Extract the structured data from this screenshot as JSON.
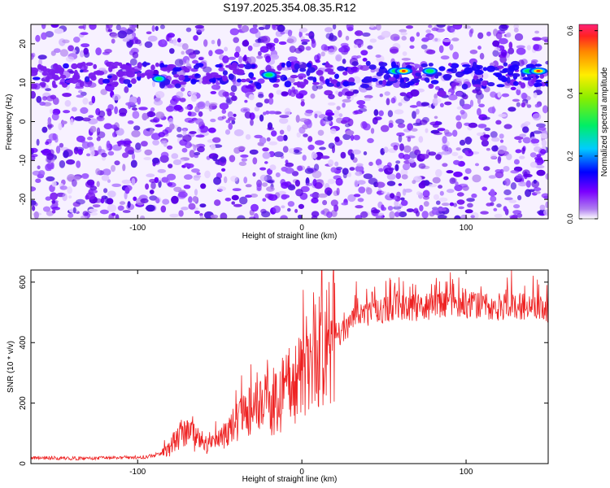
{
  "figure": {
    "title": "S197.2025.354.08.35.R12"
  },
  "chart_data": [
    {
      "type": "heatmap",
      "title": "S197.2025.354.08.35.R12",
      "xlabel": "Height of straight line (km)",
      "ylabel": "Frequency (Hz)",
      "xlim": [
        -165,
        150
      ],
      "ylim": [
        -25,
        25
      ],
      "xticks": [
        -100,
        0,
        100
      ],
      "xtick_labels": [
        "-100",
        "0",
        "100"
      ],
      "yticks": [
        -20,
        -10,
        0,
        10,
        20
      ],
      "ytick_labels": [
        "-20",
        "-10",
        "0",
        "10",
        "20"
      ],
      "colorbar": {
        "label": "Normalized spectral amplitude",
        "range": [
          0.0,
          0.62
        ],
        "ticks": [
          0.0,
          0.2,
          0.4,
          0.6
        ],
        "tick_labels": [
          "0.0",
          "0.2",
          "0.4",
          "0.6"
        ]
      },
      "signal_band": {
        "frequency_hz": 12,
        "bright_spots": [
          {
            "x": -87,
            "y": 11,
            "amp": 0.25
          },
          {
            "x": -20,
            "y": 12,
            "amp": 0.35
          },
          {
            "x": 57,
            "y": 13,
            "amp": 0.35
          },
          {
            "x": 62,
            "y": 13,
            "amp": 0.5
          },
          {
            "x": 78,
            "y": 13,
            "amp": 0.35
          },
          {
            "x": 138,
            "y": 13,
            "amp": 0.4
          },
          {
            "x": 144,
            "y": 13,
            "amp": 0.55
          }
        ]
      }
    },
    {
      "type": "line",
      "xlabel": "Height of straight line (km)",
      "ylabel": "SNR (10 * v/v)",
      "xlim": [
        -165,
        150
      ],
      "ylim": [
        0,
        640
      ],
      "xticks": [
        -100,
        0,
        100
      ],
      "xtick_labels": [
        "-100",
        "0",
        "100"
      ],
      "yticks": [
        0,
        200,
        400,
        600
      ],
      "ytick_labels": [
        "0",
        "200",
        "400",
        "600"
      ],
      "series": [
        {
          "name": "SNR",
          "color": "#ee2222",
          "x": [
            -165,
            -150,
            -130,
            -110,
            -95,
            -85,
            -80,
            -75,
            -70,
            -65,
            -60,
            -55,
            -50,
            -45,
            -40,
            -35,
            -30,
            -25,
            -20,
            -15,
            -10,
            -5,
            0,
            5,
            10,
            15,
            20,
            25,
            30,
            40,
            50,
            60,
            70,
            80,
            90,
            100,
            110,
            120,
            130,
            140,
            150
          ],
          "values": [
            20,
            18,
            17,
            20,
            22,
            35,
            55,
            90,
            110,
            80,
            70,
            60,
            80,
            100,
            130,
            150,
            170,
            190,
            200,
            215,
            240,
            270,
            300,
            330,
            360,
            390,
            420,
            440,
            470,
            500,
            510,
            520,
            515,
            520,
            530,
            525,
            520,
            515,
            520,
            515,
            510
          ]
        }
      ]
    }
  ]
}
